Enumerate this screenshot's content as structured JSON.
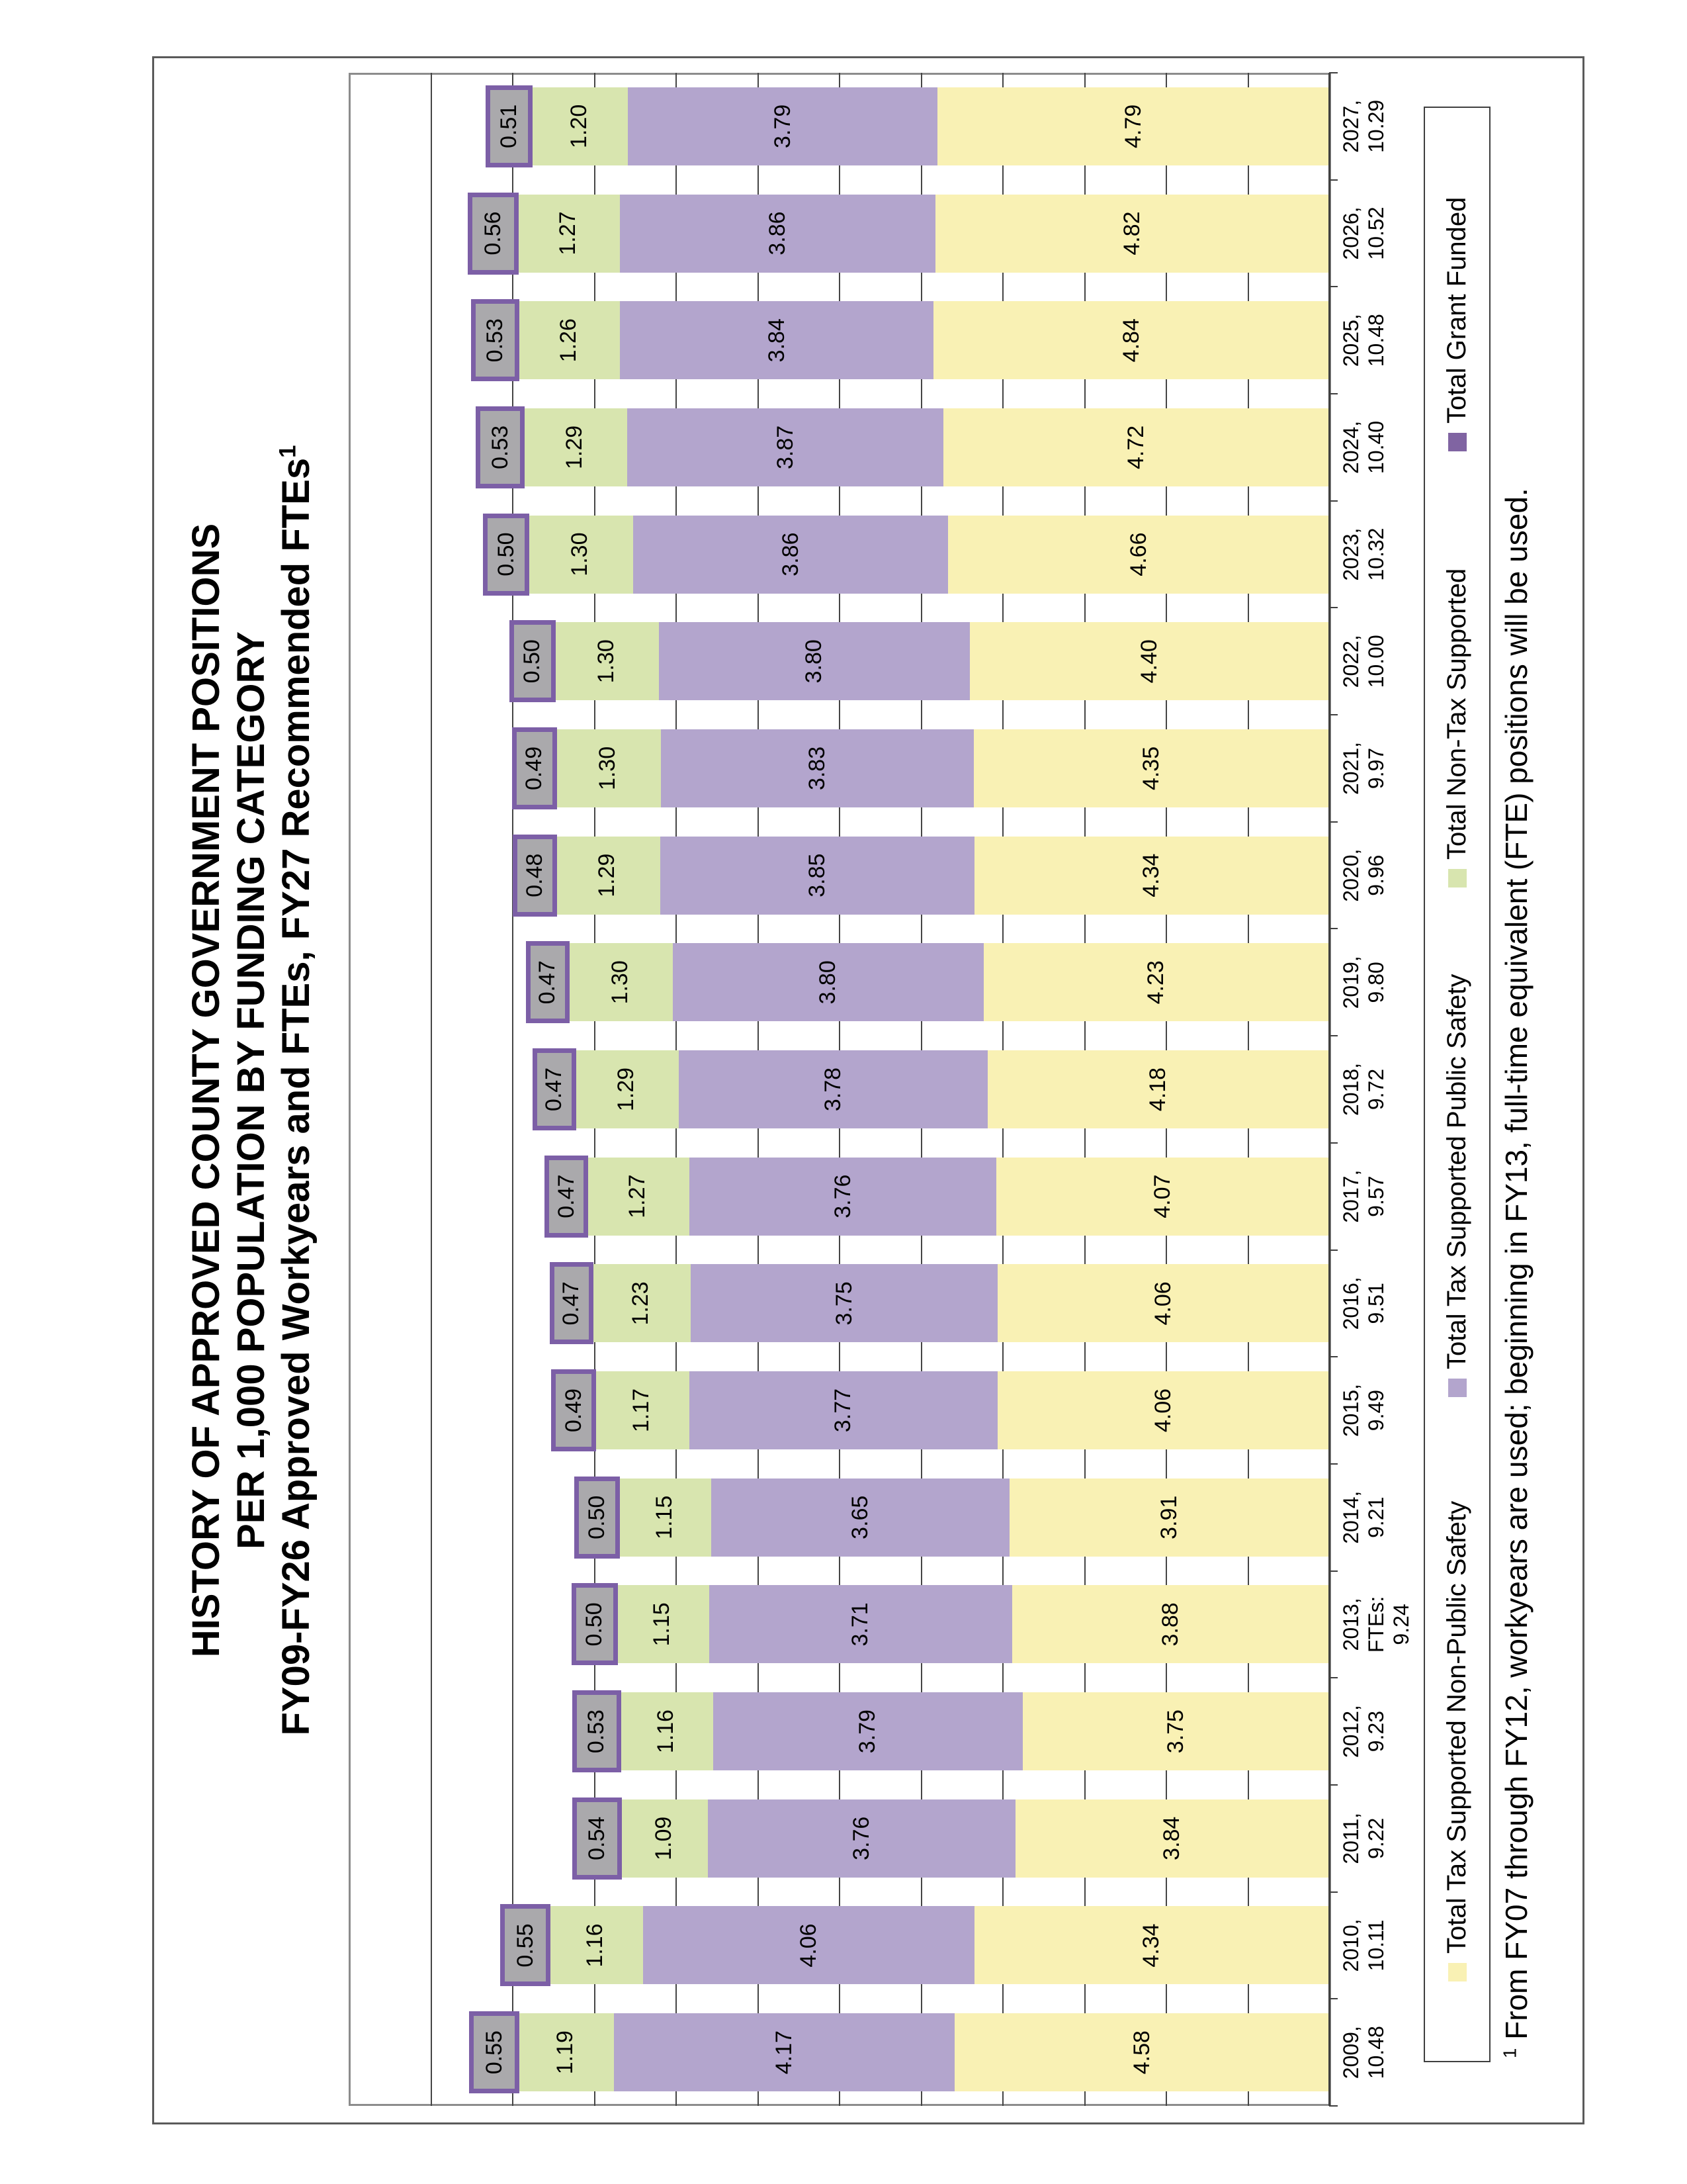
{
  "title": {
    "line1": "HISTORY OF APPROVED COUNTY GOVERNMENT POSITIONS",
    "line2": "PER 1,000 POPULATION BY FUNDING CATEGORY",
    "line3_text": "FY09-FY26 Approved Workyears and FTEs, FY27 Recommended FTEs",
    "line3_sup": "1"
  },
  "chart_data": {
    "type": "bar",
    "stacked": true,
    "orientation": "landscape chart rotated 90° CCW on a portrait page; bars vertical in landscape",
    "title": "HISTORY OF APPROVED COUNTY GOVERNMENT POSITIONS PER 1,000 POPULATION BY FUNDING CATEGORY",
    "xlabel": "",
    "ylabel": "",
    "ylim": [
      0,
      12
    ],
    "gridline_interval": 1,
    "grid": true,
    "legend_position": "bottom",
    "value_labels": true,
    "categories": [
      {
        "lines": [
          "2009,",
          "10.48"
        ]
      },
      {
        "lines": [
          "2010,",
          "10.11"
        ]
      },
      {
        "lines": [
          "2011,",
          "9.22"
        ]
      },
      {
        "lines": [
          "2012,",
          "9.23"
        ]
      },
      {
        "lines": [
          "2013,",
          "FTEs:",
          "9.24"
        ]
      },
      {
        "lines": [
          "2014,",
          "9.21"
        ]
      },
      {
        "lines": [
          "2015,",
          "9.49"
        ]
      },
      {
        "lines": [
          "2016,",
          "9.51"
        ]
      },
      {
        "lines": [
          "2017,",
          "9.57"
        ]
      },
      {
        "lines": [
          "2018,",
          "9.72"
        ]
      },
      {
        "lines": [
          "2019,",
          "9.80"
        ]
      },
      {
        "lines": [
          "2020,",
          "9.96"
        ]
      },
      {
        "lines": [
          "2021,",
          "9.97"
        ]
      },
      {
        "lines": [
          "2022,",
          "10.00"
        ]
      },
      {
        "lines": [
          "2023,",
          "10.32"
        ]
      },
      {
        "lines": [
          "2024,",
          "10.40"
        ]
      },
      {
        "lines": [
          "2025,",
          "10.48"
        ]
      },
      {
        "lines": [
          "2026,",
          "10.52"
        ]
      },
      {
        "lines": [
          "2027,",
          "10.29"
        ]
      }
    ],
    "series": [
      {
        "name": "Total Tax Supported Non-Public Safety",
        "color": "#F9F1B4",
        "values": [
          4.58,
          4.34,
          3.84,
          3.75,
          3.88,
          3.91,
          4.06,
          4.06,
          4.07,
          4.18,
          4.23,
          4.34,
          4.35,
          4.4,
          4.66,
          4.72,
          4.84,
          4.82,
          4.79
        ]
      },
      {
        "name": "Total Tax Supported Public Safety",
        "color": "#B3A5CD",
        "values": [
          4.17,
          4.06,
          3.76,
          3.79,
          3.71,
          3.65,
          3.77,
          3.75,
          3.76,
          3.78,
          3.8,
          3.85,
          3.83,
          3.8,
          3.86,
          3.87,
          3.84,
          3.86,
          3.79
        ]
      },
      {
        "name": "Total Non-Tax Supported",
        "color": "#D8E5AF",
        "values": [
          1.19,
          1.16,
          1.09,
          1.16,
          1.15,
          1.15,
          1.17,
          1.23,
          1.27,
          1.29,
          1.3,
          1.29,
          1.3,
          1.3,
          1.3,
          1.29,
          1.26,
          1.27,
          1.2
        ]
      },
      {
        "name": "Total Grant Funded",
        "color": "#8064A2",
        "bar_fill": "#AAA9AC",
        "bar_border": "#7C5FA6",
        "values": [
          0.55,
          0.55,
          0.54,
          0.53,
          0.5,
          0.5,
          0.49,
          0.47,
          0.47,
          0.47,
          0.47,
          0.48,
          0.49,
          0.5,
          0.5,
          0.53,
          0.53,
          0.56,
          0.51
        ]
      }
    ]
  },
  "footnote": {
    "sup": "1",
    "text": " From FY07 through FY12, workyears are used; beginning in FY13, full-time equivalent (FTE) positions will be used."
  },
  "colors": {
    "grid": "#454545",
    "plot_border": "#8C8C8C",
    "axis": "#3F3F3F",
    "chart_border": "#5A5A5A"
  }
}
